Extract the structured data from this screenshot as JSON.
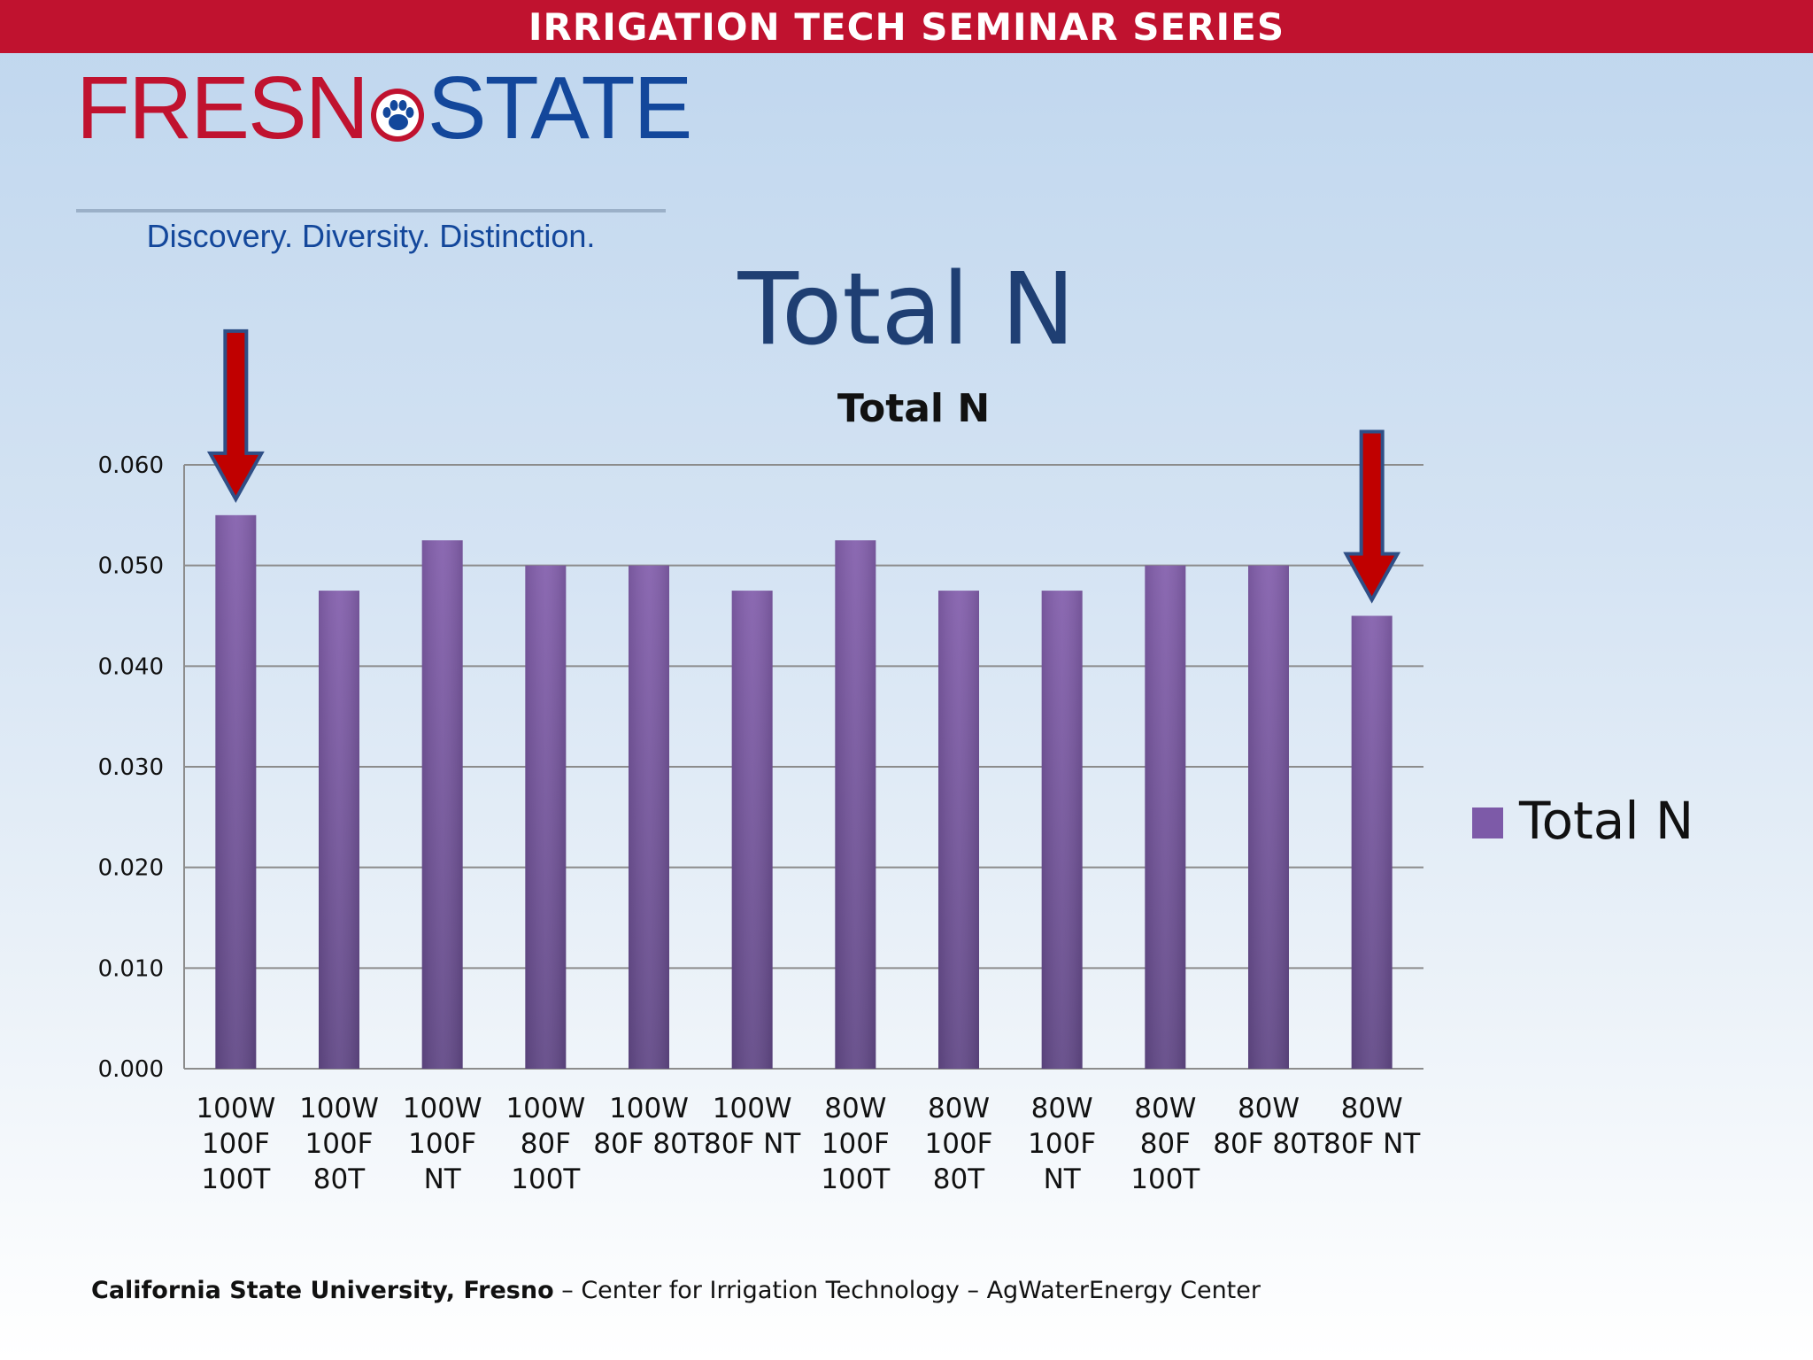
{
  "banner": {
    "title": "IRRIGATION TECH SEMINAR SERIES"
  },
  "logo": {
    "word_left": "FRESN",
    "word_right": "STATE",
    "tagline": "Discovery. Diversity. Distinction."
  },
  "slide": {
    "title": "Total N"
  },
  "footer": {
    "org": "California State University, Fresno",
    "rest": " – Center for Irrigation Technology – AgWaterEnergy Center"
  },
  "colors": {
    "banner": "#c0122f",
    "bar": "#7d5aa8",
    "arrow": "#c00000",
    "arrow_outline": "#2f4f86",
    "title": "#1f3f73"
  },
  "chart_data": {
    "type": "bar",
    "title": "Total N",
    "categories": [
      [
        "100W",
        "100F",
        "100T"
      ],
      [
        "100W",
        "100F",
        "80T"
      ],
      [
        "100W",
        "100F",
        "NT"
      ],
      [
        "100W",
        "80F",
        "100T"
      ],
      [
        "100W",
        "80F 80T"
      ],
      [
        "100W",
        "80F NT"
      ],
      [
        "80W",
        "100F",
        "100T"
      ],
      [
        "80W",
        "100F",
        "80T"
      ],
      [
        "80W",
        "100F",
        "NT"
      ],
      [
        "80W",
        "80F",
        "100T"
      ],
      [
        "80W",
        "80F 80T"
      ],
      [
        "80W",
        "80F NT"
      ]
    ],
    "series": [
      {
        "name": "Total N",
        "values": [
          0.055,
          0.0475,
          0.0525,
          0.05,
          0.05,
          0.0475,
          0.0525,
          0.0475,
          0.0475,
          0.05,
          0.05,
          0.045
        ]
      }
    ],
    "yticks": [
      "0.000",
      "0.010",
      "0.020",
      "0.030",
      "0.040",
      "0.050",
      "0.060"
    ],
    "ylim": [
      0,
      0.06
    ],
    "grid": true,
    "legend": "right",
    "arrows_on_categories": [
      0,
      11
    ]
  }
}
